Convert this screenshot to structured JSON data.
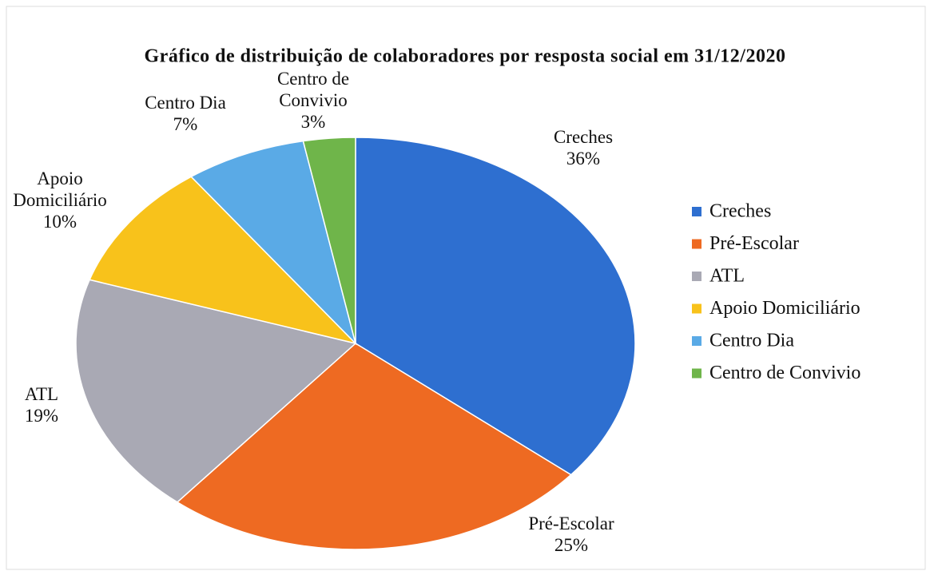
{
  "chart_data": {
    "type": "pie",
    "title": "Gráfico de distribuição de colaboradores por resposta social em 31/12/2020",
    "categories": [
      "Creches",
      "Pré-Escolar",
      "ATL",
      "Apoio Domiciliário",
      "Centro Dia",
      "Centro de Convivio"
    ],
    "values": [
      36,
      25,
      19,
      10,
      7,
      3
    ],
    "value_labels": [
      "36%",
      "25%",
      "19%",
      "10%",
      "7%",
      "3%"
    ],
    "colors": [
      "#2e6fd0",
      "#ee6a22",
      "#a9a9b4",
      "#f8c21b",
      "#5aaae6",
      "#6fb54a"
    ],
    "legend": "right"
  }
}
